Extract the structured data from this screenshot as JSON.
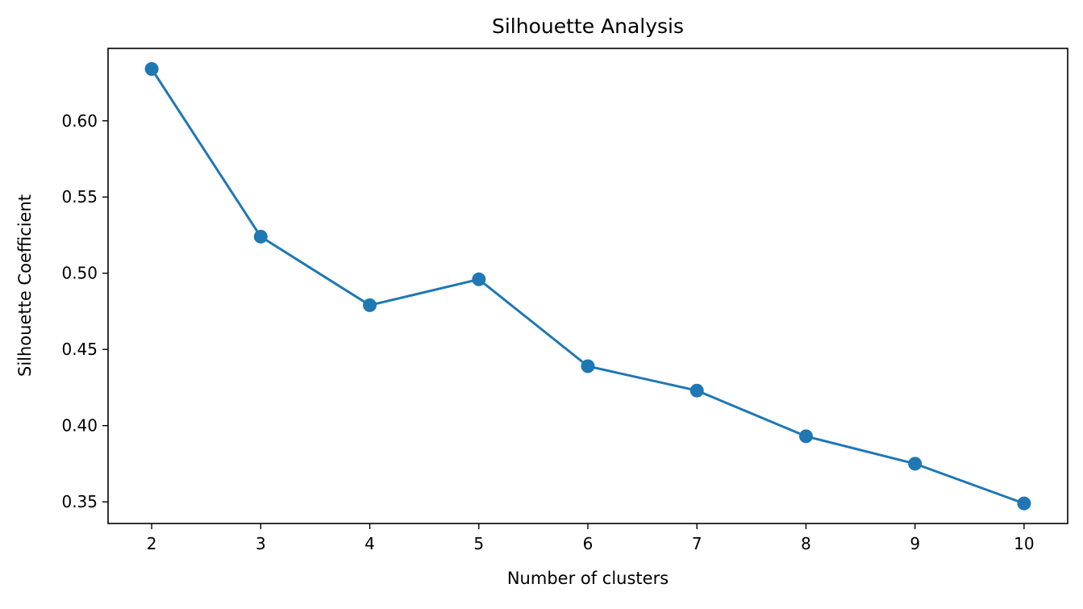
{
  "chart_data": {
    "type": "line",
    "title": "Silhouette Analysis",
    "xlabel": "Number of clusters",
    "ylabel": "Silhouette Coefficient",
    "x": [
      2,
      3,
      4,
      5,
      6,
      7,
      8,
      9,
      10
    ],
    "series": [
      {
        "values": [
          0.634,
          0.524,
          0.479,
          0.496,
          0.439,
          0.423,
          0.393,
          0.375,
          0.349
        ],
        "color": "#1f77b4",
        "marker": "circle"
      }
    ],
    "xticks": [
      "2",
      "3",
      "4",
      "5",
      "6",
      "7",
      "8",
      "9",
      "10"
    ],
    "yticks": [
      "0.35",
      "0.40",
      "0.45",
      "0.50",
      "0.55",
      "0.60"
    ],
    "xlim": [
      1.6,
      10.4
    ],
    "ylim": [
      0.3358,
      0.6475
    ],
    "grid": false,
    "legend": "none"
  }
}
